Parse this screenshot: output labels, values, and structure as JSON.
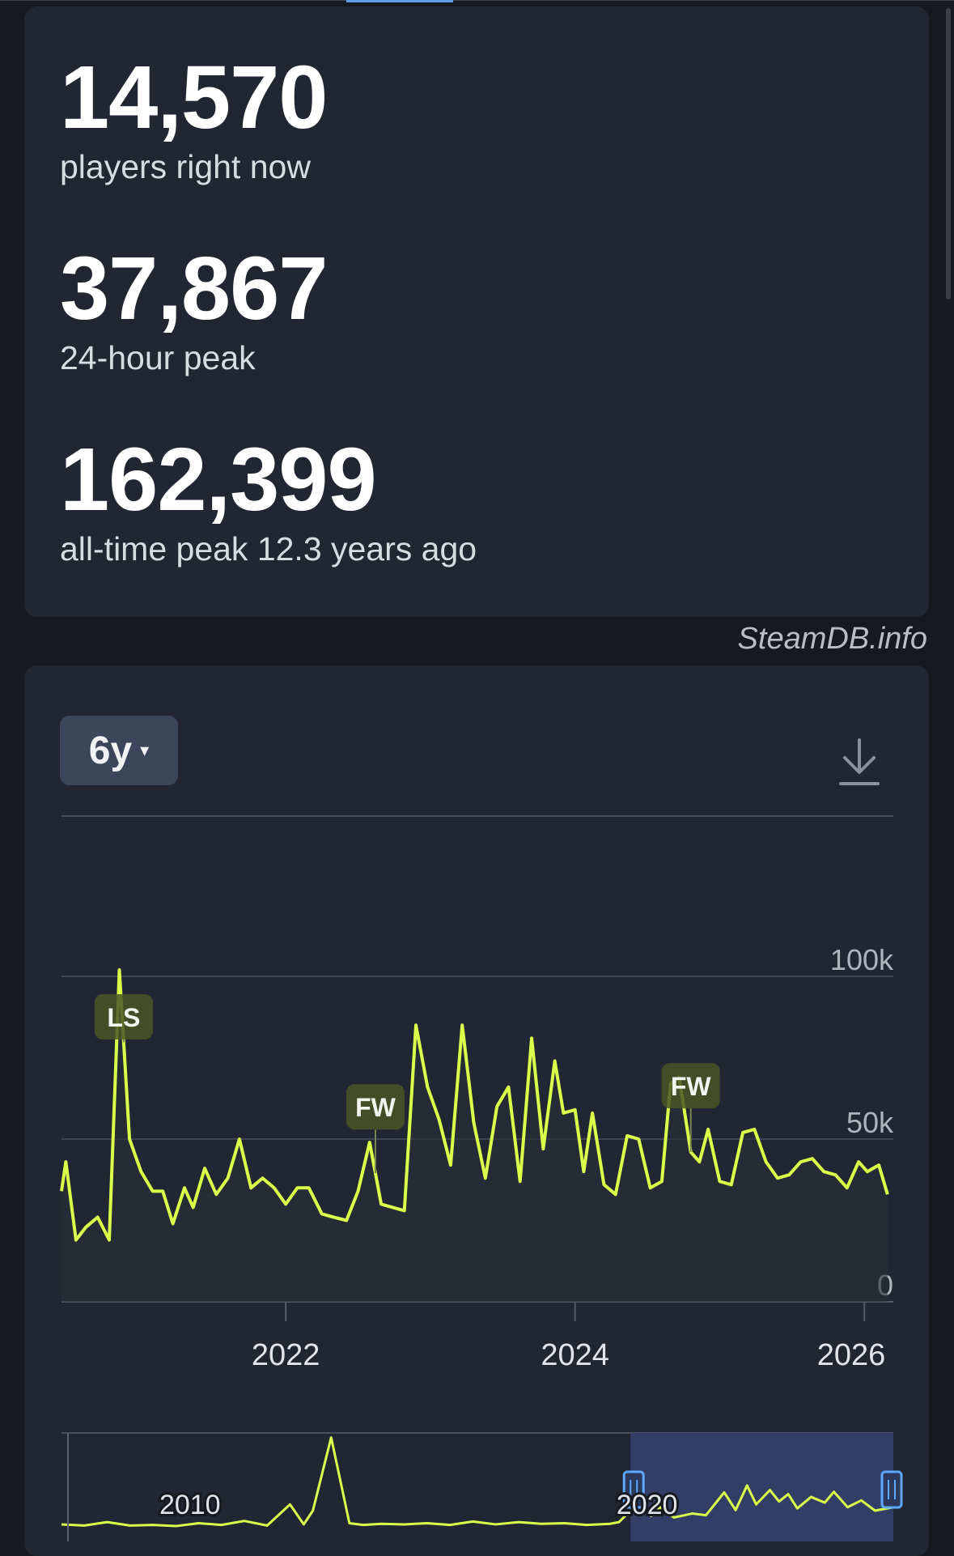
{
  "stats": [
    {
      "value": "14,570",
      "label": "players right now"
    },
    {
      "value": "37,867",
      "label": "24-hour peak"
    },
    {
      "value": "162,399",
      "label": "all-time peak 12.3 years ago"
    }
  ],
  "credit": "SteamDB.info",
  "controls": {
    "range_label": "6y",
    "range_caret": "▾",
    "download_icon": "download-icon"
  },
  "colors": {
    "line": "#dcff4a",
    "card_bg": "#212632",
    "page_bg": "#16191f",
    "event_tag_bg": "#4a5527"
  },
  "chart_data": {
    "type": "line",
    "xlim": [
      2020.45,
      2026.2
    ],
    "ylim": [
      0,
      100000
    ],
    "x_tick_labels": [
      "2022",
      "2024",
      "2026"
    ],
    "y_tick_labels": [
      "100k",
      "50k",
      "0"
    ],
    "grid": true,
    "series": [
      {
        "x": [
          2020.45,
          2020.48,
          2020.55,
          2020.62,
          2020.7,
          2020.78,
          2020.85,
          2020.92,
          2021.0,
          2021.08,
          2021.15,
          2021.22,
          2021.3,
          2021.36,
          2021.44,
          2021.52,
          2021.6,
          2021.68,
          2021.76,
          2021.84,
          2021.92,
          2022.0,
          2022.08,
          2022.16,
          2022.25,
          2022.33,
          2022.42,
          2022.5,
          2022.58,
          2022.66,
          2022.74,
          2022.82,
          2022.9,
          2022.98,
          2023.06,
          2023.14,
          2023.22,
          2023.3,
          2023.38,
          2023.46,
          2023.54,
          2023.62,
          2023.7,
          2023.78,
          2023.86,
          2023.92,
          2024.0,
          2024.06,
          2024.12,
          2024.2,
          2024.28,
          2024.36,
          2024.44,
          2024.52,
          2024.6,
          2024.66,
          2024.72,
          2024.8,
          2024.86,
          2024.92,
          2025.0,
          2025.08,
          2025.16,
          2025.24,
          2025.32,
          2025.4,
          2025.48,
          2025.56,
          2025.64,
          2025.72,
          2025.8,
          2025.88,
          2025.96,
          2026.02,
          2026.1,
          2026.16
        ],
        "y": [
          34000,
          43000,
          19000,
          23000,
          26000,
          19000,
          102000,
          50000,
          40000,
          34000,
          34000,
          24000,
          35000,
          29000,
          41000,
          33000,
          38000,
          50000,
          35000,
          38000,
          35000,
          30000,
          35000,
          35000,
          27000,
          26000,
          25000,
          34000,
          49000,
          30000,
          29000,
          28000,
          85000,
          66000,
          56000,
          42000,
          85000,
          55000,
          38000,
          60000,
          66000,
          37000,
          81000,
          47000,
          74000,
          58000,
          59000,
          40000,
          58000,
          36000,
          33000,
          51000,
          50000,
          35000,
          37000,
          67000,
          69000,
          46000,
          43000,
          53000,
          37000,
          36000,
          52000,
          53000,
          43000,
          38000,
          39000,
          43000,
          44000,
          40000,
          39000,
          35000,
          43000,
          40000,
          42000,
          33000
        ]
      }
    ],
    "annotations": [
      {
        "label": "LS",
        "x": 2020.88
      },
      {
        "label": "FW",
        "x": 2022.62
      },
      {
        "label": "FW",
        "x": 2024.8
      }
    ],
    "navigator": {
      "x_tick_labels": [
        "2010",
        "2020"
      ],
      "series": [
        {
          "x": [
            2008.0,
            2008.5,
            2009.0,
            2009.5,
            2010.0,
            2010.5,
            2011.0,
            2011.5,
            2012.0,
            2012.5,
            2013.0,
            2013.3,
            2013.5,
            2013.9,
            2014.3,
            2014.6,
            2015.0,
            2015.5,
            2016.0,
            2016.5,
            2017.0,
            2017.5,
            2018.0,
            2018.5,
            2019.0,
            2019.5,
            2020.0,
            2020.2,
            2020.45,
            2020.7,
            2020.9,
            2021.1,
            2021.4,
            2021.8,
            2022.1,
            2022.5,
            2022.75,
            2023.0,
            2023.2,
            2023.5,
            2023.7,
            2023.9,
            2024.1,
            2024.4,
            2024.7,
            2024.9,
            2025.2,
            2025.5,
            2025.8,
            2026.2
          ],
          "y": [
            10000,
            8000,
            14000,
            8000,
            9000,
            7000,
            12000,
            9000,
            16000,
            8000,
            45000,
            10000,
            34000,
            162000,
            12000,
            9000,
            11000,
            10000,
            12000,
            9000,
            15000,
            10000,
            14000,
            11000,
            12000,
            9000,
            11000,
            14000,
            34000,
            50000,
            25000,
            40000,
            22000,
            29000,
            26000,
            66000,
            35000,
            78000,
            45000,
            70000,
            50000,
            63000,
            38000,
            58000,
            48000,
            67000,
            40000,
            52000,
            34000,
            40000
          ]
        }
      ]
    }
  }
}
